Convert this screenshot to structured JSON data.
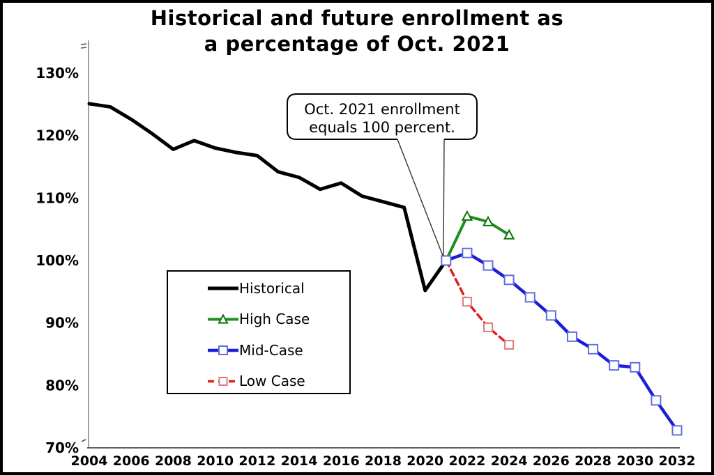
{
  "chart_data": {
    "type": "line",
    "title_line1": "Historical and future enrollment as",
    "title_line2": "a percentage of Oct. 2021",
    "xlabel": "",
    "ylabel": "",
    "xlim": [
      2004,
      2032
    ],
    "ylim": [
      70,
      133
    ],
    "grid": false,
    "legend_position": "inside-center-left",
    "x_ticks": [
      "2004",
      "2006",
      "2008",
      "2010",
      "2012",
      "2014",
      "2016",
      "2018",
      "2020",
      "2022",
      "2024",
      "2026",
      "2028",
      "2030",
      "2032"
    ],
    "y_tick_labels": [
      "130%",
      "120%",
      "110%",
      "100%",
      "90%",
      "80%",
      "70%"
    ],
    "y_tick_values": [
      130,
      120,
      110,
      100,
      90,
      80,
      70
    ],
    "annotation": {
      "line1": "Oct. 2021 enrollment",
      "line2": "equals 100 percent.",
      "points_to_year": 2021,
      "points_to_value": 100
    },
    "series": [
      {
        "name": "Historical",
        "color": "#000000",
        "width": 5,
        "dash": null,
        "marker": null,
        "x": [
          2004,
          2005,
          2006,
          2007,
          2008,
          2009,
          2010,
          2011,
          2012,
          2013,
          2014,
          2015,
          2016,
          2017,
          2018,
          2019,
          2020,
          2021
        ],
        "values": [
          125.1,
          124.6,
          122.6,
          120.3,
          117.8,
          119.2,
          118.0,
          117.3,
          116.8,
          114.2,
          113.3,
          111.4,
          112.4,
          110.3,
          109.4,
          108.5,
          95.2,
          100.0
        ]
      },
      {
        "name": "High Case",
        "color": "#1e8e1e",
        "width": 4,
        "dash": null,
        "marker": "triangle",
        "marker_color": "#0d730d",
        "marker_size": 13,
        "marker_skip_first": true,
        "x": [
          2021,
          2022,
          2023,
          2024
        ],
        "values": [
          100.0,
          107.1,
          106.2,
          104.1
        ]
      },
      {
        "name": "Mid-Case",
        "color": "#1c1cd9",
        "width": 4.5,
        "dash": null,
        "marker": "square",
        "marker_color": "#5f6fe0",
        "marker_size": 13,
        "marker_skip_first": false,
        "x": [
          2021,
          2022,
          2023,
          2024,
          2025,
          2026,
          2027,
          2028,
          2029,
          2030,
          2031,
          2032
        ],
        "values": [
          100.0,
          101.2,
          99.2,
          96.9,
          94.1,
          91.2,
          87.8,
          85.8,
          83.2,
          82.9,
          77.6,
          72.8
        ]
      },
      {
        "name": "Low Case",
        "color": "#e01c1c",
        "width": 3.5,
        "dash": "9,6",
        "marker": "square",
        "marker_color": "#e07a7a",
        "marker_size": 12,
        "marker_skip_first": true,
        "x": [
          2021,
          2022,
          2023,
          2024
        ],
        "values": [
          100.0,
          93.4,
          89.3,
          86.5
        ]
      }
    ]
  }
}
